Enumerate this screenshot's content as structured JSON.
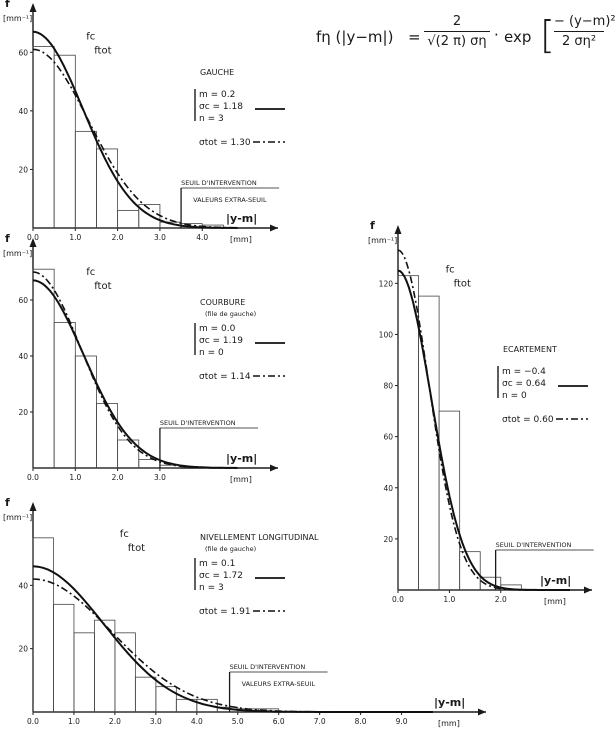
{
  "formula": {
    "lhs": "fη (|y−m|)",
    "eq": "=",
    "num": "2",
    "den": "√(2 π) ση",
    "dot": "·",
    "exp": "exp",
    "num2": "− (y−m)²",
    "den2": "2 ση²"
  },
  "chart_data": [
    {
      "id": "gauche",
      "type": "bar",
      "title": "GAUCHE",
      "subtitle": "",
      "ylabel": "f",
      "yunit": "[mm⁻¹]",
      "xlabel": "|y-m|",
      "xunit": "[mm]",
      "xlim": [
        0,
        5.2
      ],
      "ylim": [
        0,
        70
      ],
      "xticks": [
        "0.0",
        "1.0",
        "2.0",
        "3.0",
        "4.0"
      ],
      "yticks": [
        "20",
        "40",
        "60"
      ],
      "bin_width": 0.5,
      "bins": [
        0,
        0.5,
        1.0,
        1.5,
        2.0,
        2.5,
        3.0,
        3.5,
        4.0
      ],
      "values": [
        62,
        59,
        33,
        27,
        6,
        8,
        2,
        1.5,
        1
      ],
      "params": {
        "m": "m = 0.2",
        "sc": "σc = 1.18",
        "n": "n = 3",
        "stot": "σtot = 1.30"
      },
      "curves": {
        "fc_sigma": 1.18,
        "fc_amp": 67,
        "ftot_sigma": 1.3,
        "ftot_amp": 61
      },
      "curve_labels": {
        "fc": "fc",
        "ftot": "ftot"
      },
      "threshold": {
        "x": 3.5,
        "label": "SEUIL D'INTERVENTION"
      },
      "extra": "VALEURS EXTRA-SEUIL"
    },
    {
      "id": "courbure",
      "type": "bar",
      "title": "COURBURE",
      "subtitle": "(file de gauche)",
      "ylabel": "f",
      "yunit": "[mm⁻¹]",
      "xlabel": "|y-m|",
      "xunit": "[mm]",
      "xlim": [
        0,
        5.2
      ],
      "ylim": [
        0,
        75
      ],
      "xticks": [
        "0.0",
        "1.0",
        "2.0",
        "3.0"
      ],
      "yticks": [
        "20",
        "40",
        "60"
      ],
      "bin_width": 0.5,
      "bins": [
        0,
        0.5,
        1.0,
        1.5,
        2.0,
        2.5,
        3.0
      ],
      "values": [
        71,
        52,
        40,
        23,
        10,
        3,
        1
      ],
      "params": {
        "m": "m = 0.0",
        "sc": "σc = 1.19",
        "n": "n = 0",
        "stot": "σtot = 1.14"
      },
      "curves": {
        "fc_sigma": 1.19,
        "fc_amp": 67,
        "ftot_sigma": 1.14,
        "ftot_amp": 70
      },
      "curve_labels": {
        "fc": "fc",
        "ftot": "ftot"
      },
      "threshold": {
        "x": 3.0,
        "label": "SEUIL D'INTERVENTION"
      },
      "extra": ""
    },
    {
      "id": "nivellement",
      "type": "bar",
      "title": "NIVELLEMENT  LONGITUDINAL",
      "subtitle": "(file de gauche)",
      "ylabel": "f",
      "yunit": "[mm⁻¹]",
      "xlabel": "|y-m|",
      "xunit": "[mm]",
      "xlim": [
        0,
        10.5
      ],
      "ylim": [
        0,
        60
      ],
      "xticks": [
        "0.0",
        "1.0",
        "2.0",
        "3.0",
        "4.0",
        "5.0",
        "6.0",
        "7.0",
        "8.0",
        "9.0"
      ],
      "yticks": [
        "20",
        "40"
      ],
      "bin_width": 0.5,
      "bins": [
        0,
        0.5,
        1.0,
        1.5,
        2.0,
        2.5,
        3.0,
        3.5,
        4.0,
        4.5,
        5.0,
        5.5
      ],
      "values": [
        55,
        34,
        25,
        29,
        25,
        11,
        8,
        4,
        4,
        1.5,
        1,
        1
      ],
      "params": {
        "m": "m = 0.1",
        "sc": "σc = 1.72",
        "n": "n = 3",
        "stot": "σtot = 1.91"
      },
      "curves": {
        "fc_sigma": 1.72,
        "fc_amp": 46,
        "ftot_sigma": 1.91,
        "ftot_amp": 42
      },
      "curve_labels": {
        "fc": "fc",
        "ftot": "ftot"
      },
      "threshold": {
        "x": 4.8,
        "label": "SEUIL D'INTERVENTION"
      },
      "extra": "VALEURS EXTRA-SEUIL"
    },
    {
      "id": "ecartement",
      "type": "bar",
      "title": "ECARTEMENT",
      "subtitle": "",
      "ylabel": "f",
      "yunit": "[mm⁻¹]",
      "xlabel": "|y-m|",
      "xunit": "[mm]",
      "xlim": [
        0,
        3.6
      ],
      "ylim": [
        0,
        135
      ],
      "xticks": [
        "0.0",
        "1.0",
        "2.0"
      ],
      "yticks": [
        "20",
        "40",
        "60",
        "80",
        "100",
        "120"
      ],
      "bin_width": 0.4,
      "bins": [
        0,
        0.4,
        0.8,
        1.2,
        1.6,
        2.0
      ],
      "values": [
        123,
        115,
        70,
        15,
        5,
        2
      ],
      "params": {
        "m": "m = −0.4",
        "sc": "σc = 0.64",
        "n": "n = 0",
        "stot": "σtot = 0.60"
      },
      "curves": {
        "fc_sigma": 0.64,
        "fc_amp": 125,
        "ftot_sigma": 0.6,
        "ftot_amp": 133
      },
      "curve_labels": {
        "fc": "fc",
        "ftot": "ftot"
      },
      "threshold": {
        "x": 1.9,
        "label": "SEUIL D'INTERVENTION"
      },
      "extra": ""
    }
  ]
}
